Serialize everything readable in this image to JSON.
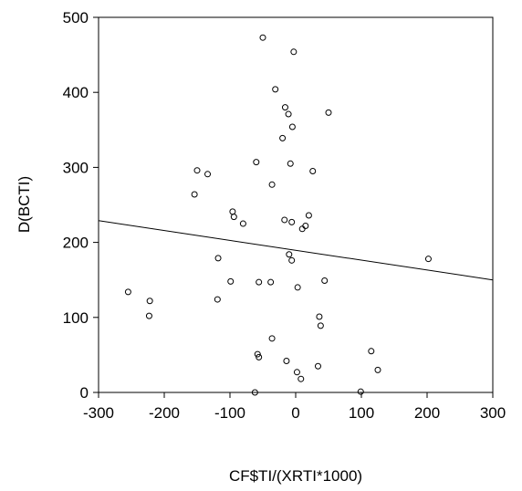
{
  "chart_data": {
    "type": "scatter",
    "title": "",
    "xlabel": "CF$TI/(XRTI*1000)",
    "ylabel": "D(BCTI)",
    "xlim": [
      -300,
      300
    ],
    "ylim": [
      0,
      500
    ],
    "xticks": [
      -300,
      -200,
      -100,
      0,
      100,
      200,
      300
    ],
    "yticks": [
      0,
      100,
      200,
      300,
      400,
      500
    ],
    "grid": false,
    "legend": "none",
    "colors": {
      "points": "#000000",
      "axes": "#000000",
      "fit_line": "#000000"
    },
    "points": [
      {
        "x": -50,
        "y": 473
      },
      {
        "x": -3,
        "y": 454
      },
      {
        "x": -31,
        "y": 404
      },
      {
        "x": -16,
        "y": 380
      },
      {
        "x": -11,
        "y": 371
      },
      {
        "x": 50,
        "y": 373
      },
      {
        "x": -5,
        "y": 354
      },
      {
        "x": -20,
        "y": 339
      },
      {
        "x": -60,
        "y": 307
      },
      {
        "x": -8,
        "y": 305
      },
      {
        "x": -150,
        "y": 296
      },
      {
        "x": 26,
        "y": 295
      },
      {
        "x": -134,
        "y": 291
      },
      {
        "x": -36,
        "y": 277
      },
      {
        "x": -154,
        "y": 264
      },
      {
        "x": -96,
        "y": 241
      },
      {
        "x": -94,
        "y": 234
      },
      {
        "x": 20,
        "y": 236
      },
      {
        "x": -17,
        "y": 230
      },
      {
        "x": -6,
        "y": 227
      },
      {
        "x": -80,
        "y": 225
      },
      {
        "x": 15,
        "y": 222
      },
      {
        "x": 10,
        "y": 218
      },
      {
        "x": -10,
        "y": 184
      },
      {
        "x": -6,
        "y": 176
      },
      {
        "x": -118,
        "y": 179
      },
      {
        "x": 202,
        "y": 178
      },
      {
        "x": -99,
        "y": 148
      },
      {
        "x": -56,
        "y": 147
      },
      {
        "x": -38,
        "y": 147
      },
      {
        "x": 44,
        "y": 149
      },
      {
        "x": 3,
        "y": 140
      },
      {
        "x": -255,
        "y": 134
      },
      {
        "x": -119,
        "y": 124
      },
      {
        "x": -222,
        "y": 122
      },
      {
        "x": -223,
        "y": 102
      },
      {
        "x": 36,
        "y": 101
      },
      {
        "x": 38,
        "y": 89
      },
      {
        "x": -36,
        "y": 72
      },
      {
        "x": 115,
        "y": 55
      },
      {
        "x": -58,
        "y": 51
      },
      {
        "x": -56,
        "y": 47
      },
      {
        "x": -14,
        "y": 42
      },
      {
        "x": 34,
        "y": 35
      },
      {
        "x": 125,
        "y": 30
      },
      {
        "x": 2,
        "y": 27
      },
      {
        "x": 8,
        "y": 18
      },
      {
        "x": -62,
        "y": 0
      },
      {
        "x": 99,
        "y": 1
      }
    ],
    "fit_line": {
      "x": [
        -300,
        300
      ],
      "y": [
        229,
        150
      ]
    }
  }
}
